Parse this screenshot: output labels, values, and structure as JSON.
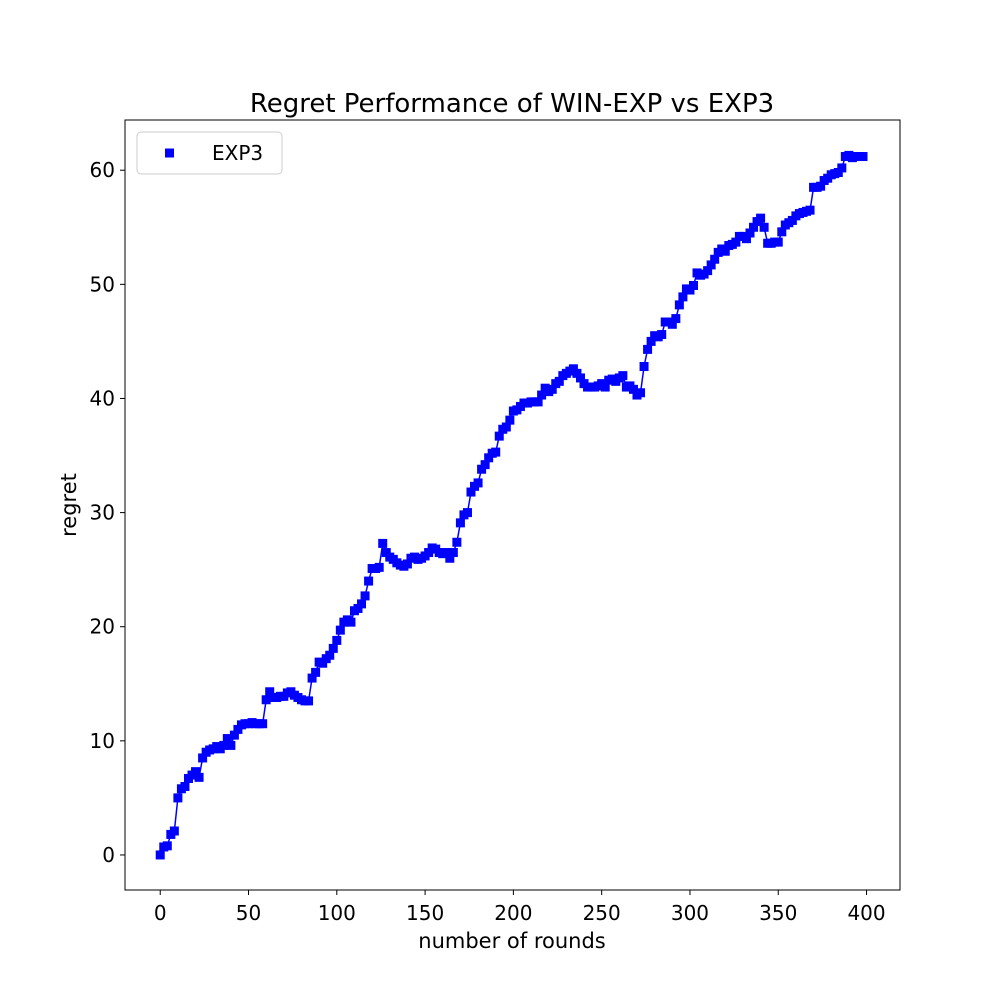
{
  "chart_data": {
    "type": "line",
    "title": "Regret Performance of WIN-EXP vs EXP3",
    "xlabel": "number of rounds",
    "ylabel": "regret",
    "xlim": [
      -19.95,
      418.95
    ],
    "ylim": [
      -3.07,
      64.4
    ],
    "xticks": [
      0,
      50,
      100,
      150,
      200,
      250,
      300,
      350,
      400
    ],
    "yticks": [
      0,
      10,
      20,
      30,
      40,
      50,
      60
    ],
    "legend": "upper left",
    "marker": "square",
    "series": [
      {
        "name": "EXP3",
        "color": "#0000ff",
        "x": [
          0,
          2,
          4,
          6,
          8,
          10,
          12,
          14,
          16,
          18,
          20,
          22,
          24,
          26,
          28,
          30,
          32,
          34,
          36,
          38,
          40,
          42,
          44,
          46,
          48,
          50,
          52,
          54,
          56,
          58,
          60,
          62,
          64,
          66,
          68,
          70,
          72,
          74,
          76,
          78,
          80,
          82,
          84,
          86,
          88,
          90,
          92,
          94,
          96,
          98,
          100,
          102,
          104,
          106,
          108,
          110,
          112,
          114,
          116,
          118,
          120,
          122,
          124,
          126,
          128,
          130,
          132,
          134,
          136,
          138,
          140,
          142,
          144,
          146,
          148,
          150,
          152,
          154,
          156,
          158,
          160,
          162,
          164,
          166,
          168,
          170,
          172,
          174,
          176,
          178,
          180,
          182,
          184,
          186,
          188,
          190,
          192,
          194,
          196,
          198,
          200,
          202,
          204,
          206,
          208,
          210,
          212,
          214,
          216,
          218,
          220,
          222,
          224,
          226,
          228,
          230,
          232,
          234,
          236,
          238,
          240,
          242,
          244,
          246,
          248,
          250,
          252,
          254,
          256,
          258,
          260,
          262,
          264,
          266,
          268,
          270,
          272,
          274,
          276,
          278,
          280,
          282,
          284,
          286,
          288,
          290,
          292,
          294,
          296,
          298,
          300,
          302,
          304,
          306,
          308,
          310,
          312,
          314,
          316,
          318,
          320,
          322,
          324,
          326,
          328,
          330,
          332,
          334,
          336,
          338,
          340,
          342,
          344,
          346,
          348,
          350,
          352,
          354,
          356,
          358,
          360,
          362,
          364,
          366,
          368,
          370,
          372,
          374,
          376,
          378,
          380,
          382,
          384,
          386,
          388,
          390,
          392,
          394,
          396,
          398
        ],
        "values": [
          0,
          0.7,
          0.8,
          1.8,
          2.1,
          5.0,
          5.8,
          6.0,
          6.7,
          7.0,
          7.3,
          6.8,
          8.5,
          9.0,
          9.2,
          9.3,
          9.5,
          9.3,
          9.6,
          10.2,
          9.6,
          10.5,
          11.0,
          11.4,
          11.5,
          11.5,
          11.6,
          11.5,
          11.5,
          11.5,
          13.6,
          14.3,
          13.8,
          13.8,
          13.9,
          13.9,
          14.2,
          14.3,
          14.0,
          13.8,
          13.6,
          13.5,
          13.5,
          15.5,
          16.0,
          16.9,
          16.8,
          17.2,
          17.5,
          18.1,
          18.8,
          19.7,
          20.4,
          20.6,
          20.4,
          21.4,
          21.6,
          22.0,
          22.7,
          24.0,
          25.1,
          25.1,
          25.2,
          27.3,
          26.5,
          26.1,
          25.9,
          25.6,
          25.4,
          25.3,
          25.5,
          26.0,
          26.1,
          25.9,
          26.0,
          26.2,
          26.5,
          26.9,
          26.8,
          26.5,
          26.4,
          26.5,
          26.0,
          26.5,
          27.4,
          29.1,
          29.8,
          30.0,
          31.8,
          32.3,
          32.6,
          33.8,
          34.2,
          34.8,
          35.2,
          35.3,
          36.7,
          37.3,
          37.5,
          38.1,
          38.9,
          39.0,
          39.3,
          39.6,
          39.6,
          39.7,
          39.7,
          39.7,
          40.3,
          40.9,
          40.6,
          40.8,
          41.3,
          41.5,
          42.0,
          42.2,
          42.4,
          42.6,
          42.2,
          41.8,
          41.3,
          41.0,
          41.0,
          41.0,
          41.1,
          41.3,
          41.0,
          41.6,
          41.7,
          41.5,
          41.8,
          42.0,
          41.0,
          41.1,
          40.8,
          40.3,
          40.5,
          42.8,
          44.3,
          45.0,
          45.5,
          45.4,
          45.6,
          46.7,
          46.7,
          46.5,
          47.0,
          48.2,
          48.9,
          49.6,
          49.5,
          49.9,
          51.0,
          50.8,
          50.9,
          51.2,
          51.7,
          52.2,
          52.8,
          53.1,
          52.9,
          53.4,
          53.5,
          53.7,
          54.2,
          54.2,
          54.0,
          54.5,
          55.0,
          55.5,
          55.8,
          55.0,
          53.6,
          53.6,
          53.7,
          53.7,
          54.6,
          55.2,
          55.4,
          55.6,
          56.0,
          56.2,
          56.3,
          56.4,
          56.5,
          58.5,
          58.5,
          58.6,
          59.1,
          59.3,
          59.6,
          59.7,
          59.8,
          60.2,
          61.2,
          61.3,
          61.1,
          61.2,
          61.2,
          61.2
        ]
      }
    ]
  }
}
